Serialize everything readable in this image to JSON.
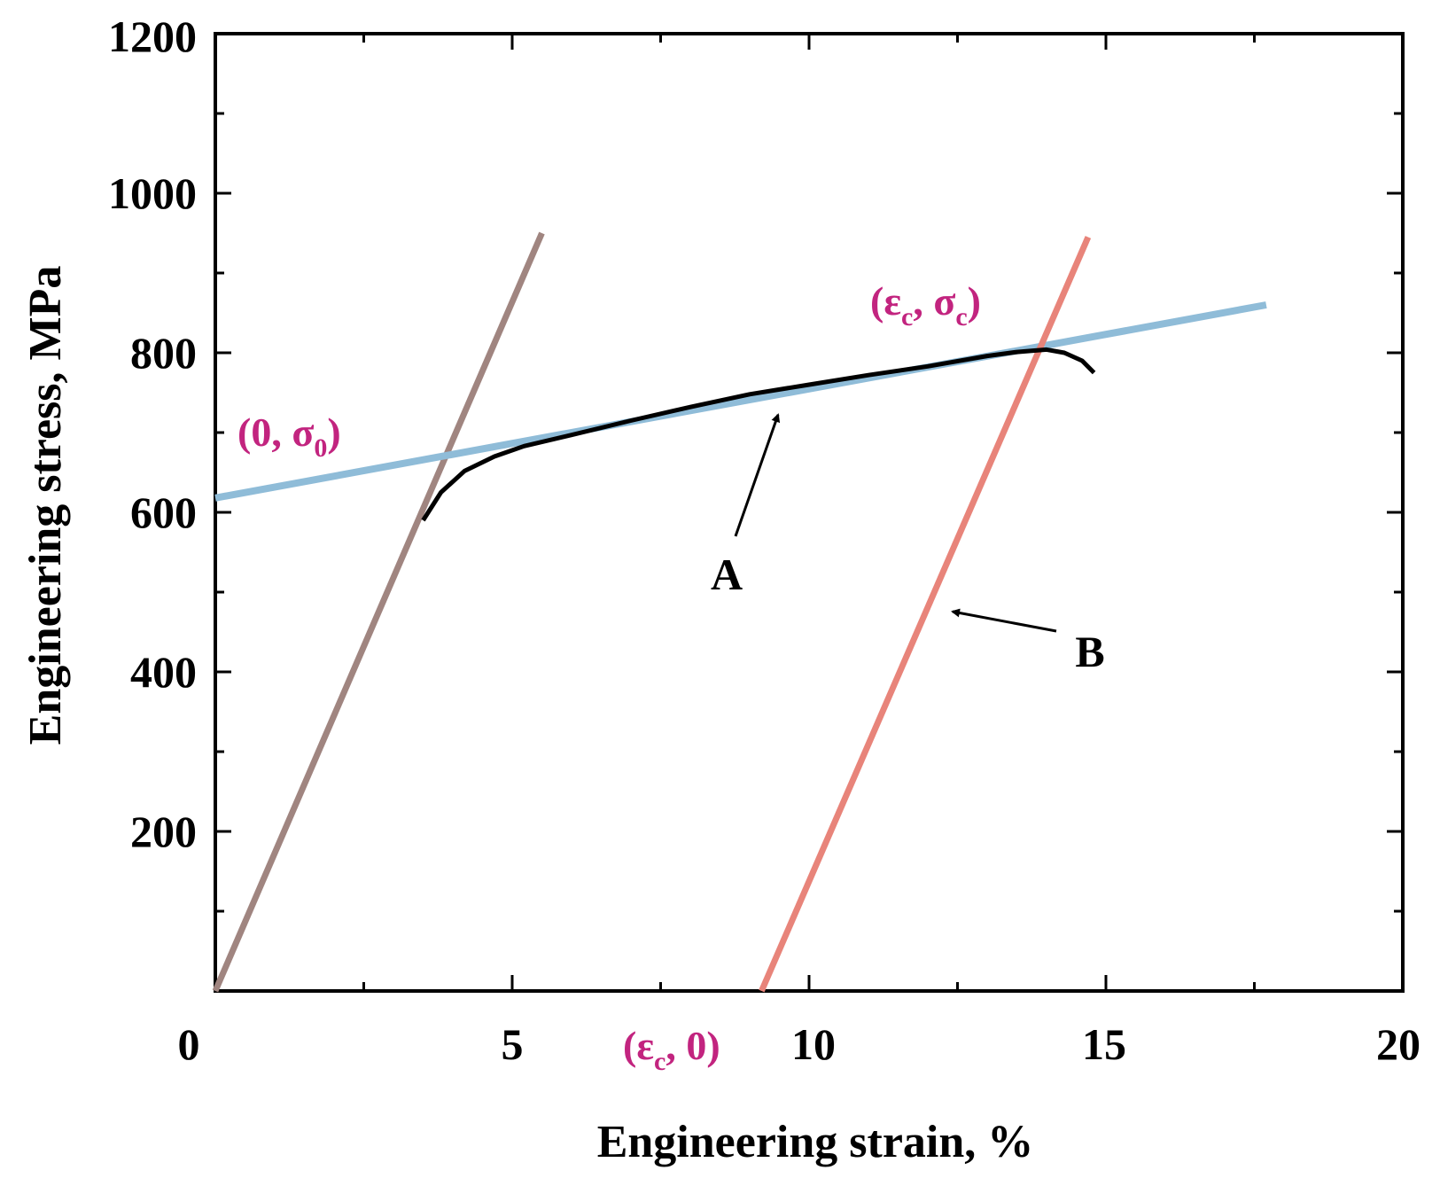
{
  "chart_data": {
    "type": "line",
    "title": "",
    "xlabel": "Engineering strain, %",
    "ylabel": "Engineering stress, MPa",
    "xlim": [
      0,
      20
    ],
    "ylim": [
      0,
      1200
    ],
    "x_ticks": [
      0,
      5,
      10,
      15,
      20
    ],
    "x_tick_labels": [
      "0",
      "5",
      "10",
      "15",
      "20"
    ],
    "y_ticks": [
      200,
      400,
      600,
      800,
      1000,
      1200
    ],
    "y_tick_labels": [
      "200",
      "400",
      "600",
      "800",
      "1000",
      "1200"
    ],
    "x_minor_step": 2.5,
    "y_minor_step": 100,
    "series": [
      {
        "name": "elastic loading line",
        "color": "#a08580",
        "x": [
          0,
          5.5
        ],
        "y": [
          0,
          950
        ]
      },
      {
        "name": "linear hardening fit",
        "color": "#8fbcd8",
        "x": [
          0,
          17.7
        ],
        "y": [
          618,
          860
        ]
      },
      {
        "name": "unloading line B",
        "color": "#e8847a",
        "x": [
          9.2,
          14.7
        ],
        "y": [
          0,
          945
        ]
      },
      {
        "name": "stress-strain curve A",
        "color": "#000000",
        "x": [
          3.5,
          3.8,
          4.2,
          4.7,
          5.2,
          6.0,
          7.0,
          8.0,
          9.0,
          10.0,
          11.0,
          12.0,
          13.0,
          13.5,
          14.0,
          14.3,
          14.6,
          14.8
        ],
        "y": [
          590,
          625,
          652,
          670,
          683,
          697,
          715,
          732,
          748,
          760,
          772,
          783,
          796,
          801,
          804,
          800,
          790,
          775
        ]
      }
    ],
    "annotations": {
      "point_0": {
        "prefix": "(0, σ",
        "sub": "0",
        "suffix": ")",
        "color": "#c2247f"
      },
      "point_c": {
        "prefix": "(ε",
        "sub": "c",
        "mid": ", σ",
        "sub2": "c",
        "suffix": ")",
        "color": "#c2247f"
      },
      "point_e": {
        "prefix": "(ε",
        "sub": "c",
        "suffix": ", 0)",
        "color": "#c2247f"
      },
      "label_A": "A",
      "label_B": "B"
    }
  }
}
